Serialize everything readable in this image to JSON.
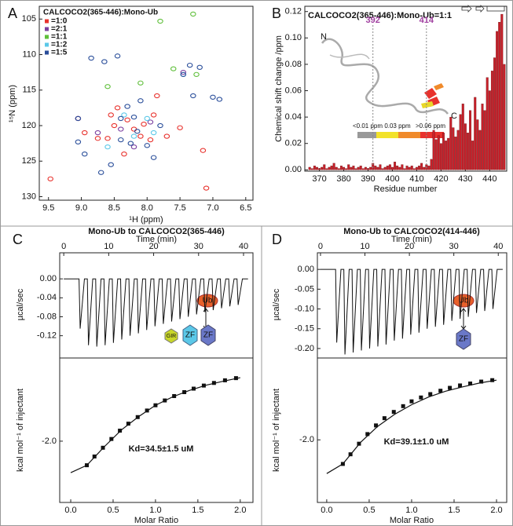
{
  "panel_labels": [
    "A",
    "B",
    "C",
    "D"
  ],
  "chart_data": [
    {
      "type": "scatter",
      "xlabel": "¹H (ppm)",
      "ylabel": "¹⁵N (ppm)",
      "legend_title": "CALCOCO2(365-446):Mono-Ub",
      "legend": "upper left",
      "xlim": [
        9.64,
        6.39
      ],
      "ylim": [
        130.5,
        103.2
      ],
      "xticks": [
        9.5,
        {
          "value": 9,
          "label": "9.0"
        },
        8.5,
        {
          "value": 8,
          "label": "8.0"
        },
        7.5,
        {
          "value": 7,
          "label": "7.0"
        },
        6.5
      ],
      "yticks": [
        105,
        110,
        115,
        120,
        125,
        130
      ],
      "series": [
        {
          "name": "=1:0",
          "color": "#e8322d",
          "x": [
            9.47,
            9.05,
            8.95,
            8.75,
            8.6,
            8.55,
            8.5,
            8.45,
            8.35,
            8.3,
            8.2,
            8.1,
            8.05,
            7.95,
            7.9,
            7.85,
            7.7,
            7.5,
            7.15,
            7.1
          ],
          "values": [
            127.5,
            119,
            121,
            121.8,
            121.8,
            118.5,
            120,
            117.5,
            124,
            119.2,
            120.5,
            121.5,
            119.8,
            122,
            118.5,
            115.8,
            121.5,
            120.3,
            123.5,
            128.8
          ]
        },
        {
          "name": "=2:1",
          "color": "#7b3fa0",
          "x": [
            9.05,
            8.75,
            8.4,
            8.2,
            7.95,
            7.45
          ],
          "values": [
            119,
            121,
            120.5,
            123,
            119.5,
            112.5
          ]
        },
        {
          "name": "=1:1",
          "color": "#5fbf3a",
          "x": [
            8.6,
            8.1,
            7.8,
            7.6,
            7.3,
            7.25
          ],
          "values": [
            114.5,
            114,
            105.3,
            112,
            104.3,
            112.8
          ]
        },
        {
          "name": "=1:2",
          "color": "#5bc8e8",
          "x": [
            8.6,
            8.35,
            8.2,
            8.0,
            7.9,
            7.45
          ],
          "values": [
            123,
            118.5,
            121.5,
            119,
            121,
            112.8
          ]
        },
        {
          "name": "=1:5",
          "color": "#2a4e9a",
          "x": [
            9.05,
            9.05,
            8.95,
            8.85,
            8.7,
            8.65,
            8.55,
            8.45,
            8.4,
            8.4,
            8.3,
            8.25,
            8.2,
            8.15,
            8.1,
            8.0,
            7.9,
            7.8,
            7.45,
            7.35,
            7.3,
            7.2,
            7.0,
            6.9
          ],
          "values": [
            119,
            122.3,
            124,
            110.5,
            126.6,
            111,
            125.5,
            110.2,
            119,
            122,
            117.3,
            122.5,
            118.8,
            120.8,
            116.5,
            122.8,
            124.5,
            120,
            112.8,
            111.5,
            115.8,
            111.8,
            116,
            116.3
          ]
        }
      ]
    },
    {
      "type": "bar",
      "title": "CALCOCO2(365-446):Mono-Ub=1:1",
      "xlabel": "Residue number",
      "ylabel": "Chemical shift change /ppm",
      "xlim": [
        364,
        447
      ],
      "ylim": [
        -0.001,
        0.124
      ],
      "xticks": [
        370,
        380,
        390,
        400,
        410,
        420,
        430,
        440
      ],
      "yticks": [
        {
          "value": 0,
          "label": "0.00"
        },
        0.02,
        0.04,
        0.06,
        0.08,
        {
          "value": 0.1,
          "label": "0.10"
        },
        0.12
      ],
      "color": "#c8202a",
      "markers": [
        392,
        414
      ],
      "inset_labels": [
        "N",
        "C"
      ],
      "scale_labels": [
        "<0.01 ppm",
        "0.03 ppm",
        ">0.06 ppm"
      ],
      "x": [
        366,
        367,
        368,
        369,
        370,
        371,
        372,
        373,
        374,
        375,
        376,
        377,
        378,
        379,
        380,
        381,
        382,
        383,
        384,
        385,
        386,
        387,
        388,
        389,
        390,
        391,
        392,
        393,
        394,
        395,
        396,
        397,
        398,
        399,
        400,
        401,
        402,
        403,
        404,
        405,
        406,
        407,
        408,
        409,
        410,
        411,
        412,
        413,
        414,
        415,
        416,
        417,
        418,
        419,
        420,
        421,
        422,
        423,
        424,
        425,
        426,
        427,
        428,
        429,
        430,
        431,
        432,
        433,
        434,
        435,
        436,
        437,
        438,
        439,
        440,
        441,
        442,
        443,
        444,
        445,
        446
      ],
      "values": [
        0.002,
        0.001,
        0.003,
        0.002,
        0.001,
        0.002,
        0.004,
        0.001,
        0.002,
        0.003,
        0.005,
        0.002,
        0.001,
        0.003,
        0.002,
        0.001,
        0.004,
        0.002,
        0.003,
        0.001,
        0.002,
        0.003,
        0.001,
        0.002,
        0.001,
        0.002,
        0.005,
        0.003,
        0.002,
        0.004,
        0.001,
        0.002,
        0.003,
        0.004,
        0.002,
        0.006,
        0.003,
        0.002,
        0.004,
        0.001,
        0.003,
        0.002,
        0.003,
        0.001,
        0.002,
        0.003,
        0.005,
        0.002,
        0.004,
        0.003,
        0.008,
        0.03,
        0.023,
        0.026,
        0.02,
        0.028,
        0.022,
        0.024,
        0.04,
        0.032,
        0.025,
        0.03,
        0.042,
        0.05,
        0.035,
        0.028,
        0.045,
        0.022,
        0.055,
        0.038,
        0.03,
        0.05,
        0.045,
        0.07,
        0.06,
        0.075,
        0.085,
        0.105,
        0.112,
        0.118,
        0.08
      ]
    },
    {
      "type": "line",
      "title": "Mono-Ub to CALCOCO2(365-446)",
      "xlabel": "Time (min)",
      "ylabel": "µcal/sec",
      "x_axis": "top",
      "xlim": [
        -0.9,
        42.1
      ],
      "ylim": [
        -0.167,
        0.055
      ],
      "xticks": [
        0,
        10,
        20,
        30,
        40
      ],
      "yticks": [
        {
          "value": 0,
          "label": "0.00"
        },
        -0.04,
        -0.08,
        -0.12
      ],
      "color": "#111111",
      "annotations": [
        "Ub",
        "GIR",
        "ZF",
        "ZF"
      ],
      "x": [
        0,
        3.4,
        3.65,
        4.6,
        5.25,
        5.5,
        6.45,
        7.1,
        7.35,
        8.3,
        8.95,
        9.2,
        10.15,
        10.8,
        11.05,
        12,
        12.65,
        12.9,
        13.85,
        14.5,
        14.75,
        15.7,
        16.35,
        16.6,
        17.55,
        18.2,
        18.45,
        19.4,
        20.05,
        20.3,
        21.25,
        21.9,
        22.15,
        23.1,
        23.75,
        24,
        24.95,
        25.6,
        25.85,
        26.8,
        27.45,
        27.7,
        28.65,
        29.3,
        29.55,
        30.5,
        31.15,
        31.4,
        32.35,
        33,
        33.25,
        34.2,
        34.85,
        35.1,
        36.05,
        36.7,
        36.95,
        37.9,
        38.55,
        38.8,
        39.75,
        41
      ],
      "values": [
        0,
        0,
        -0.105,
        0,
        0,
        -0.14,
        0,
        0,
        -0.143,
        0,
        0,
        -0.14,
        0,
        0,
        -0.135,
        0,
        0,
        -0.128,
        0,
        0,
        -0.12,
        0,
        0,
        -0.115,
        0,
        0,
        -0.108,
        0,
        0,
        -0.1,
        0,
        0,
        -0.095,
        0,
        0,
        -0.09,
        0,
        0,
        -0.085,
        0,
        0,
        -0.08,
        0,
        0,
        -0.075,
        0,
        0,
        -0.07,
        0,
        0,
        -0.066,
        0,
        0,
        -0.062,
        0,
        0,
        -0.058,
        0,
        0,
        -0.055,
        0,
        0
      ]
    },
    {
      "type": "scatter",
      "xlabel": "Molar Ratio",
      "ylabel": "kcal mol⁻¹ of injectant",
      "annotation": "Kd=34.5±1.5 uM",
      "xlim": [
        -0.13,
        2.15
      ],
      "ylim": [
        -3.4,
        -0.1
      ],
      "xticks": [
        {
          "value": 0,
          "label": "0.0"
        },
        0.5,
        {
          "value": 1,
          "label": "1.0"
        },
        1.5,
        {
          "value": 2,
          "label": "2.0"
        }
      ],
      "yticks": [
        {
          "value": -2,
          "label": "-2.0"
        }
      ],
      "marker": "square",
      "color": "#111111",
      "x": [
        0.19,
        0.28,
        0.38,
        0.48,
        0.58,
        0.68,
        0.79,
        0.9,
        1.0,
        1.11,
        1.22,
        1.34,
        1.45,
        1.57,
        1.69,
        1.82,
        1.95
      ],
      "values": [
        -2.55,
        -2.35,
        -2.15,
        -1.95,
        -1.76,
        -1.6,
        -1.45,
        -1.3,
        -1.18,
        -1.07,
        -0.97,
        -0.88,
        -0.8,
        -0.73,
        -0.67,
        -0.61,
        -0.56
      ],
      "fit": {
        "x": [
          0,
          0.19,
          0.4,
          0.6,
          0.8,
          1.0,
          1.2,
          1.4,
          1.6,
          1.8,
          2.0
        ],
        "values": [
          -2.72,
          -2.55,
          -2.12,
          -1.74,
          -1.44,
          -1.18,
          -0.99,
          -0.84,
          -0.72,
          -0.63,
          -0.55
        ]
      }
    },
    {
      "type": "line",
      "title": "Mono-Ub to CALCOCO2(414-446)",
      "xlabel": "Time (min)",
      "ylabel": "µcal/sec",
      "x_axis": "top",
      "xlim": [
        -0.7,
        41.9
      ],
      "ylim": [
        -0.224,
        0.042
      ],
      "xticks": [
        0,
        10,
        20,
        30,
        40
      ],
      "yticks": [
        {
          "value": 0,
          "label": "0.00"
        },
        -0.05,
        {
          "value": -0.1,
          "label": "-0.10"
        },
        -0.15,
        {
          "value": -0.2,
          "label": "-0.20"
        }
      ],
      "color": "#111111",
      "annotations": [
        "Ub",
        "ZF"
      ],
      "x": [
        0,
        3.4,
        3.65,
        4.6,
        5.25,
        5.5,
        6.45,
        7.1,
        7.35,
        8.3,
        8.95,
        9.2,
        10.15,
        10.8,
        11.05,
        12,
        12.65,
        12.9,
        13.85,
        14.5,
        14.75,
        15.7,
        16.35,
        16.6,
        17.55,
        18.2,
        18.45,
        19.4,
        20.05,
        20.3,
        21.25,
        21.9,
        22.15,
        23.1,
        23.75,
        24,
        24.95,
        25.6,
        25.85,
        26.8,
        27.45,
        27.7,
        28.65,
        29.3,
        29.55,
        30.5,
        31.15,
        31.4,
        32.35,
        33,
        33.25,
        34.2,
        34.85,
        35.1,
        36.05,
        36.7,
        36.95,
        37.9,
        38.55,
        38.8,
        39.75,
        41
      ],
      "values": [
        0,
        0,
        -0.185,
        0,
        0,
        -0.215,
        0,
        0,
        -0.21,
        0,
        0,
        -0.205,
        0,
        0,
        -0.2,
        0,
        0,
        -0.195,
        0,
        0,
        -0.19,
        0,
        0,
        -0.18,
        0,
        0,
        -0.175,
        0,
        0,
        -0.165,
        0,
        0,
        -0.16,
        0,
        0,
        -0.15,
        0,
        0,
        -0.145,
        0,
        0,
        -0.14,
        0,
        0,
        -0.13,
        0,
        0,
        -0.125,
        0,
        0,
        -0.12,
        0,
        0,
        -0.11,
        0,
        0,
        -0.105,
        0,
        0,
        -0.1,
        0,
        0
      ]
    },
    {
      "type": "scatter",
      "xlabel": "Molar Ratio",
      "ylabel": "kcal mol⁻¹ of injectant",
      "annotation": "Kd=39.1±1.0 uM",
      "xlim": [
        -0.11,
        2.12
      ],
      "ylim": [
        -3.3,
        -0.3
      ],
      "xticks": [
        {
          "value": 0,
          "label": "0.0"
        },
        0.5,
        {
          "value": 1,
          "label": "1.0"
        },
        1.5,
        {
          "value": 2,
          "label": "2.0"
        }
      ],
      "yticks": [
        {
          "value": -2,
          "label": "-2.0"
        }
      ],
      "marker": "square",
      "color": "#111111",
      "x": [
        0.19,
        0.28,
        0.38,
        0.48,
        0.58,
        0.68,
        0.79,
        0.9,
        1.0,
        1.11,
        1.22,
        1.34,
        1.45,
        1.57,
        1.69,
        1.82,
        1.95
      ],
      "values": [
        -2.5,
        -2.3,
        -2.08,
        -1.88,
        -1.7,
        -1.55,
        -1.42,
        -1.3,
        -1.2,
        -1.12,
        -1.05,
        -0.98,
        -0.92,
        -0.87,
        -0.83,
        -0.79,
        -0.76
      ],
      "fit": {
        "x": [
          0,
          0.19,
          0.4,
          0.6,
          0.8,
          1.0,
          1.2,
          1.4,
          1.6,
          1.8,
          2.0
        ],
        "values": [
          -2.7,
          -2.5,
          -2.05,
          -1.72,
          -1.47,
          -1.27,
          -1.11,
          -0.99,
          -0.9,
          -0.82,
          -0.76
        ]
      }
    }
  ]
}
